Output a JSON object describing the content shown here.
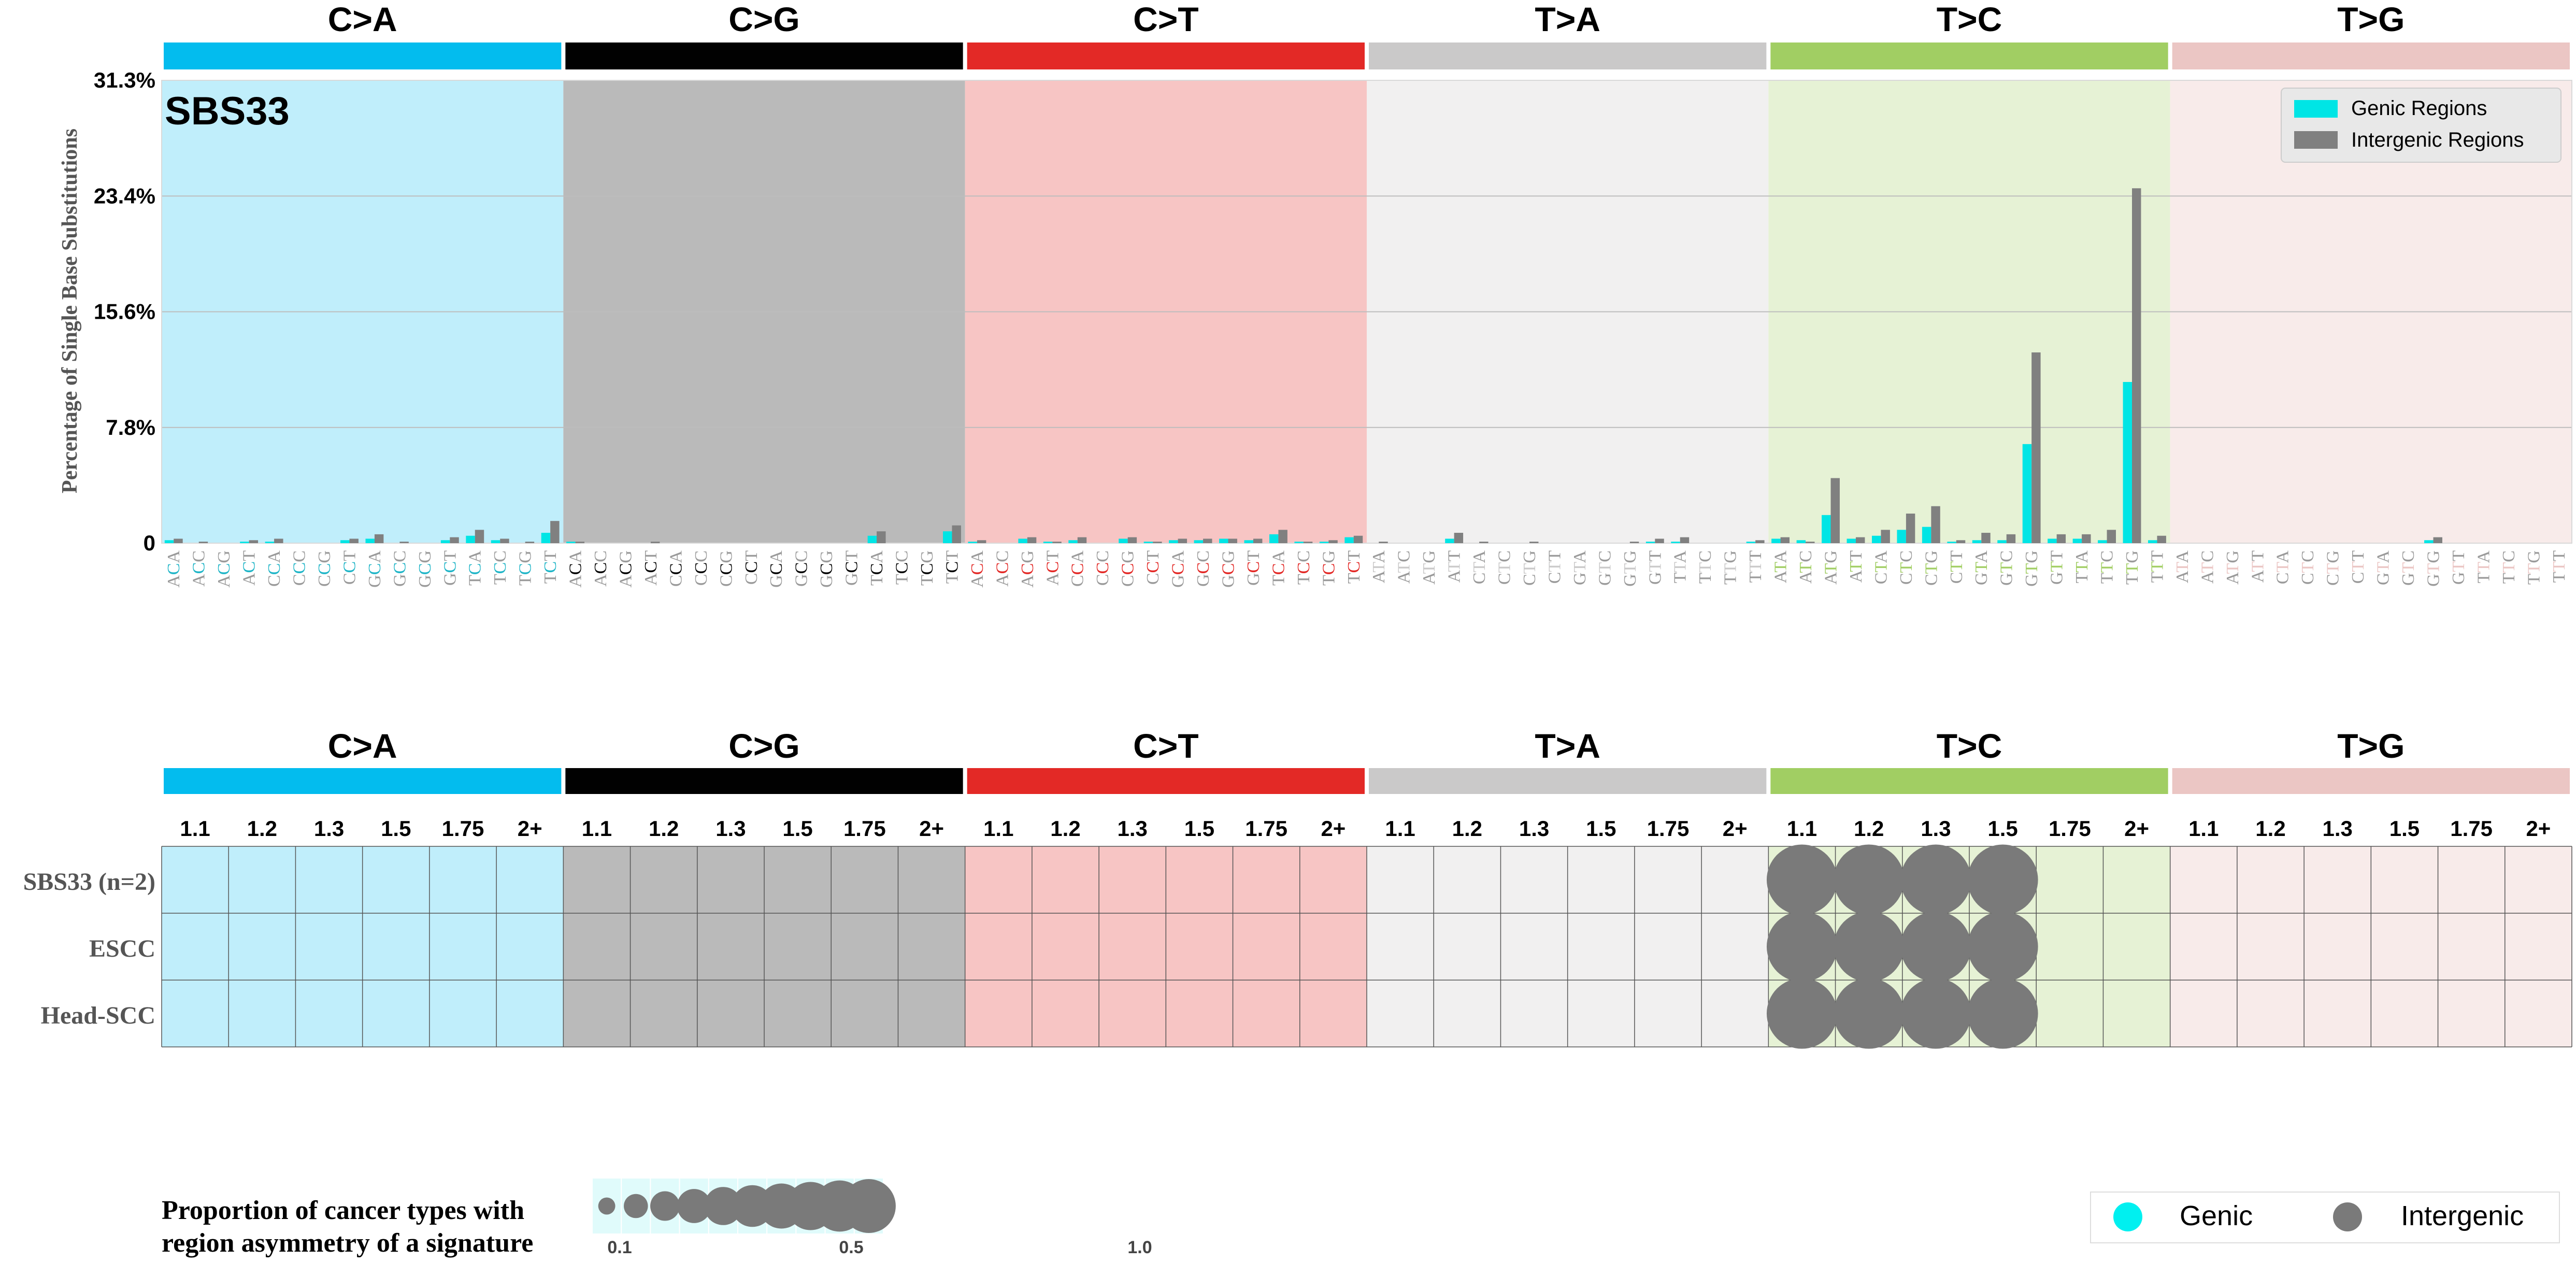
{
  "figure": {
    "signature_label": "SBS33",
    "y_axis_label": "Percentage of Single Base Substitutions",
    "legend": {
      "genic": "Genic Regions",
      "intergenic": "Intergenic Regions"
    }
  },
  "colors": {
    "mutation_types": {
      "C>A": "#03bcee",
      "C>G": "#010101",
      "C>T": "#e32926",
      "T>A": "#cac9c9",
      "T>C": "#a1ce63",
      "T>G": "#ebc6c4"
    },
    "genic_bar": "#00e5e5",
    "intergenic_bar": "#808080",
    "bubble": "#7a7a7a"
  },
  "chart_data": [
    {
      "type": "bar",
      "title": "SBS33",
      "ylabel": "Percentage of Single Base Substitutions",
      "ylim": [
        0,
        31.3
      ],
      "y_ticks": [
        "0",
        "7.8%",
        "15.6%",
        "23.4%",
        "31.3%"
      ],
      "grid": true,
      "legend_placement": "top-right",
      "mutation_types": [
        "C>A",
        "C>G",
        "C>T",
        "T>A",
        "T>C",
        "T>G"
      ],
      "contexts": {
        "C": [
          "ACA",
          "ACC",
          "ACG",
          "ACT",
          "CCA",
          "CCC",
          "CCG",
          "CCT",
          "GCA",
          "GCC",
          "GCG",
          "GCT",
          "TCA",
          "TCC",
          "TCG",
          "TCT"
        ],
        "T": [
          "ATA",
          "ATC",
          "ATG",
          "ATT",
          "CTA",
          "CTC",
          "CTG",
          "CTT",
          "GTA",
          "GTC",
          "GTG",
          "GTT",
          "TTA",
          "TTC",
          "TTG",
          "TTT"
        ]
      },
      "series": [
        {
          "name": "Genic Regions",
          "values": [
            0.2,
            0.0,
            0.0,
            0.1,
            0.1,
            0.0,
            0.0,
            0.2,
            0.3,
            0.0,
            0.0,
            0.2,
            0.5,
            0.2,
            0.0,
            0.7,
            0.1,
            0.0,
            0.0,
            0.0,
            0.0,
            0.0,
            0.0,
            0.0,
            0.0,
            0.0,
            0.0,
            0.0,
            0.5,
            0.0,
            0.0,
            0.8,
            0.1,
            0.0,
            0.3,
            0.1,
            0.2,
            0.0,
            0.3,
            0.1,
            0.2,
            0.2,
            0.3,
            0.2,
            0.6,
            0.1,
            0.1,
            0.4,
            0.0,
            0.0,
            0.0,
            0.3,
            0.0,
            0.0,
            0.0,
            0.0,
            0.0,
            0.0,
            0.0,
            0.1,
            0.1,
            0.0,
            0.0,
            0.1,
            0.3,
            0.2,
            1.9,
            0.3,
            0.5,
            0.9,
            1.1,
            0.1,
            0.2,
            0.2,
            6.7,
            0.3,
            0.3,
            0.2,
            10.9,
            0.2,
            0.0,
            0.0,
            0.0,
            0.0,
            0.0,
            0.0,
            0.0,
            0.0,
            0.0,
            0.0,
            0.2,
            0.0,
            0.0,
            0.0,
            0.0,
            0.0
          ]
        },
        {
          "name": "Intergenic Regions",
          "values": [
            0.3,
            0.1,
            0.0,
            0.2,
            0.3,
            0.0,
            0.0,
            0.3,
            0.6,
            0.1,
            0.0,
            0.4,
            0.9,
            0.3,
            0.1,
            1.5,
            0.1,
            0.0,
            0.0,
            0.1,
            0.0,
            0.0,
            0.0,
            0.0,
            0.0,
            0.0,
            0.0,
            0.0,
            0.8,
            0.0,
            0.0,
            1.2,
            0.2,
            0.0,
            0.4,
            0.1,
            0.4,
            0.0,
            0.4,
            0.1,
            0.3,
            0.3,
            0.3,
            0.3,
            0.9,
            0.1,
            0.2,
            0.5,
            0.1,
            0.0,
            0.0,
            0.7,
            0.1,
            0.0,
            0.1,
            0.0,
            0.0,
            0.0,
            0.1,
            0.3,
            0.4,
            0.0,
            0.0,
            0.2,
            0.4,
            0.1,
            4.4,
            0.4,
            0.9,
            2.0,
            2.5,
            0.2,
            0.7,
            0.6,
            12.9,
            0.6,
            0.6,
            0.9,
            24.0,
            0.5,
            0.0,
            0.0,
            0.0,
            0.0,
            0.0,
            0.0,
            0.0,
            0.0,
            0.0,
            0.0,
            0.4,
            0.0,
            0.0,
            0.0,
            0.0,
            0.0
          ]
        }
      ]
    },
    {
      "type": "heatmap",
      "mutation_types": [
        "C>A",
        "C>G",
        "C>T",
        "T>A",
        "T>C",
        "T>G"
      ],
      "columns": [
        "1.1",
        "1.2",
        "1.3",
        "1.5",
        "1.75",
        "2+"
      ],
      "rows": [
        "SBS33 (n=2)",
        "ESCC",
        "Head-SCC"
      ],
      "cells": [
        {
          "row": "SBS33 (n=2)",
          "type": "T>C",
          "column": "1.1",
          "region": "Intergenic",
          "proportion": 1.0
        },
        {
          "row": "SBS33 (n=2)",
          "type": "T>C",
          "column": "1.2",
          "region": "Intergenic",
          "proportion": 1.0
        },
        {
          "row": "SBS33 (n=2)",
          "type": "T>C",
          "column": "1.3",
          "region": "Intergenic",
          "proportion": 1.0
        },
        {
          "row": "SBS33 (n=2)",
          "type": "T>C",
          "column": "1.5",
          "region": "Intergenic",
          "proportion": 1.0
        },
        {
          "row": "ESCC",
          "type": "T>C",
          "column": "1.1",
          "region": "Intergenic",
          "proportion": 1.0
        },
        {
          "row": "ESCC",
          "type": "T>C",
          "column": "1.2",
          "region": "Intergenic",
          "proportion": 1.0
        },
        {
          "row": "ESCC",
          "type": "T>C",
          "column": "1.3",
          "region": "Intergenic",
          "proportion": 1.0
        },
        {
          "row": "ESCC",
          "type": "T>C",
          "column": "1.5",
          "region": "Intergenic",
          "proportion": 1.0
        },
        {
          "row": "Head-SCC",
          "type": "T>C",
          "column": "1.1",
          "region": "Intergenic",
          "proportion": 1.0
        },
        {
          "row": "Head-SCC",
          "type": "T>C",
          "column": "1.2",
          "region": "Intergenic",
          "proportion": 1.0
        },
        {
          "row": "Head-SCC",
          "type": "T>C",
          "column": "1.3",
          "region": "Intergenic",
          "proportion": 1.0
        },
        {
          "row": "Head-SCC",
          "type": "T>C",
          "column": "1.5",
          "region": "Intergenic",
          "proportion": 1.0
        }
      ]
    }
  ],
  "size_legend": {
    "title_line1": "Proportion of cancer types with",
    "title_line2": "region asymmetry of a signature",
    "proportions": [
      0.1,
      0.2,
      0.3,
      0.4,
      0.5,
      0.6,
      0.7,
      0.8,
      0.9,
      1.0
    ],
    "labels": [
      "0.1",
      "0.5",
      "1.0"
    ]
  },
  "region_legend": {
    "genic": "Genic",
    "intergenic": "Intergenic"
  }
}
